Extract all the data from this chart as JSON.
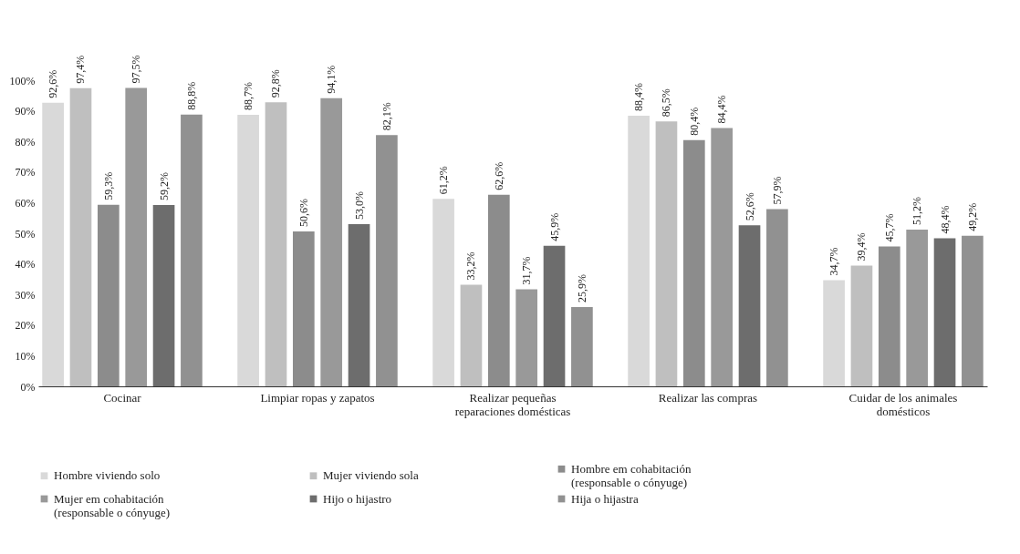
{
  "chart_data": {
    "type": "bar",
    "categories": [
      "Cocinar",
      "Limpiar ropas y zapatos",
      "Realizar pequeñas reparaciones domésticas",
      "Realizar las compras",
      "Cuidar de los animales domésticos"
    ],
    "series": [
      {
        "name": "Hombre viviendo solo",
        "color": "#d9d9d9",
        "values": [
          92.6,
          88.7,
          61.2,
          88.4,
          34.7
        ],
        "value_labels": [
          "92,6%",
          "88,7%",
          "61,2%",
          "88,4%",
          "34,7%"
        ]
      },
      {
        "name": "Mujer viviendo sola",
        "color": "#bfbfbf",
        "values": [
          97.4,
          92.8,
          33.2,
          86.5,
          39.4
        ],
        "value_labels": [
          "97,4%",
          "92,8%",
          "33,2%",
          "86,5%",
          "39,4%"
        ]
      },
      {
        "name": "Hombre em cohabitación (responsable o cónyuge)",
        "color": "#8c8c8c",
        "values": [
          59.3,
          50.6,
          62.6,
          80.4,
          45.7
        ],
        "value_labels": [
          "59,3%",
          "50,6%",
          "62,6%",
          "80,4%",
          "45,7%"
        ]
      },
      {
        "name": "Mujer em cohabitación (responsable o cónyuge)",
        "color": "#999999",
        "values": [
          97.5,
          94.1,
          31.7,
          84.4,
          51.2
        ],
        "value_labels": [
          "97,5%",
          "94,1%",
          "31,7%",
          "84,4%",
          "51,2%"
        ]
      },
      {
        "name": "Hijo o hijastro",
        "color": "#6d6d6d",
        "values": [
          59.2,
          53.0,
          45.9,
          52.6,
          48.4
        ],
        "value_labels": [
          "59,2%",
          "53,0%",
          "45,9%",
          "52,6%",
          "48,4%"
        ]
      },
      {
        "name": "Hija o hijastra",
        "color": "#919191",
        "values": [
          88.8,
          82.1,
          25.9,
          57.9,
          49.2
        ],
        "value_labels": [
          "88,8%",
          "82,1%",
          "25,9%",
          "57,9%",
          "49,2%"
        ]
      }
    ],
    "ylim": [
      0,
      100
    ],
    "yticks": [
      {
        "value": 0,
        "label": "0%"
      },
      {
        "value": 10,
        "label": "10%"
      },
      {
        "value": 20,
        "label": "20%"
      },
      {
        "value": 30,
        "label": "30%"
      },
      {
        "value": 40,
        "label": "40%"
      },
      {
        "value": 50,
        "label": "50%"
      },
      {
        "value": 60,
        "label": "60%"
      },
      {
        "value": 70,
        "label": "70%"
      },
      {
        "value": 80,
        "label": "80%"
      },
      {
        "value": 90,
        "label": "90%"
      },
      {
        "value": 100,
        "label": "100%"
      }
    ],
    "grid": false,
    "legend": "bottom"
  }
}
